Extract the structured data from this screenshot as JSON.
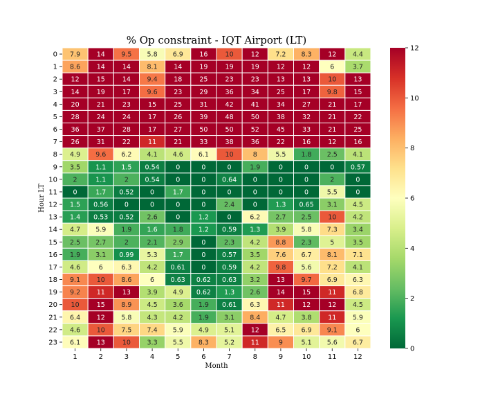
{
  "chart_data": {
    "type": "heatmap",
    "title": "% Op constraint - IQT Airport (LT)",
    "xlabel": "Month",
    "ylabel": "Hour LT",
    "x_categories": [
      "1",
      "2",
      "3",
      "4",
      "5",
      "6",
      "7",
      "8",
      "9",
      "10",
      "11",
      "12"
    ],
    "y_categories": [
      "0",
      "1",
      "2",
      "3",
      "4",
      "5",
      "6",
      "7",
      "8",
      "9",
      "10",
      "11",
      "12",
      "13",
      "14",
      "15",
      "16",
      "17",
      "18",
      "19",
      "20",
      "21",
      "22",
      "23"
    ],
    "values": [
      [
        7.9,
        14,
        9.5,
        5.8,
        6.9,
        16,
        10,
        12,
        7.2,
        8.3,
        12,
        4.4
      ],
      [
        8.6,
        14,
        14,
        8.1,
        14,
        19,
        19,
        19,
        12,
        12,
        6,
        3.7
      ],
      [
        12,
        15,
        14,
        9.4,
        18,
        25,
        23,
        23,
        13,
        13,
        10,
        13
      ],
      [
        14,
        19,
        17,
        9.6,
        23,
        29,
        36,
        34,
        25,
        17,
        9.8,
        15
      ],
      [
        20,
        21,
        23,
        15,
        25,
        31,
        42,
        41,
        34,
        27,
        21,
        17
      ],
      [
        28,
        24,
        24,
        17,
        26,
        39,
        48,
        50,
        38,
        32,
        21,
        22
      ],
      [
        36,
        37,
        28,
        17,
        27,
        50,
        50,
        52,
        45,
        33,
        21,
        25
      ],
      [
        26,
        31,
        22,
        11,
        21,
        33,
        38,
        36,
        22,
        16,
        12,
        16
      ],
      [
        4.9,
        9.6,
        6.2,
        4.1,
        4.6,
        6.1,
        10,
        8,
        5.5,
        1.8,
        2.5,
        4.1
      ],
      [
        3.5,
        1.1,
        1.5,
        0.54,
        0,
        0,
        0,
        1.9,
        0,
        0,
        0,
        0.57
      ],
      [
        2,
        1.1,
        2,
        0.54,
        0,
        0,
        0.64,
        0,
        0,
        0,
        2,
        0
      ],
      [
        0,
        1.7,
        0.52,
        0,
        1.7,
        0,
        0,
        0,
        0,
        0,
        5.5,
        0
      ],
      [
        1.5,
        0.56,
        0,
        0,
        0,
        0,
        2.4,
        0,
        1.3,
        0.65,
        3.1,
        4.5
      ],
      [
        1.4,
        0.53,
        0.52,
        2.6,
        0,
        1.2,
        0,
        6.2,
        2.7,
        2.5,
        10,
        4.2
      ],
      [
        4.7,
        5.9,
        1.9,
        1.6,
        1.8,
        1.2,
        0.59,
        1.3,
        3.9,
        5.8,
        7.3,
        3.4
      ],
      [
        2.5,
        2.7,
        2,
        2.1,
        2.9,
        0,
        2.3,
        4.2,
        8.8,
        2.3,
        5,
        3.5
      ],
      [
        1.9,
        3.1,
        0.99,
        5.3,
        1.7,
        0,
        0.57,
        3.5,
        7.6,
        6.7,
        8.1,
        7.1
      ],
      [
        4.6,
        6,
        6.3,
        4.2,
        0.61,
        0,
        0.59,
        4.2,
        9.8,
        5.6,
        7.2,
        4.1
      ],
      [
        9.1,
        10,
        8.6,
        6,
        0.63,
        0.62,
        0.63,
        3.2,
        13,
        9.7,
        6.9,
        6.3
      ],
      [
        9.2,
        11,
        13,
        3.9,
        4.9,
        0.62,
        1.3,
        2.6,
        14,
        15,
        11,
        6.8
      ],
      [
        10,
        15,
        8.9,
        4.5,
        3.6,
        1.9,
        0.61,
        6.3,
        11,
        12,
        12,
        4.5
      ],
      [
        6.4,
        12,
        5.8,
        4.3,
        4.2,
        1.9,
        3.1,
        8.4,
        4.7,
        3.8,
        11,
        5.9
      ],
      [
        4.6,
        10,
        7.5,
        7.4,
        5.9,
        4.9,
        5.1,
        12,
        6.5,
        6.9,
        9.1,
        6
      ],
      [
        6.1,
        13,
        10,
        3.3,
        5.5,
        8.3,
        5.2,
        11,
        9,
        5.1,
        5.6,
        6.7
      ]
    ],
    "colorbar": {
      "colormap": "RdYlGn_r",
      "vmin": 0,
      "vmax": 12,
      "ticks": [
        "0",
        "2",
        "4",
        "6",
        "8",
        "10",
        "12"
      ]
    },
    "colors": {
      "low": "#006837",
      "mid": "#feffbe",
      "high": "#a50026"
    }
  }
}
